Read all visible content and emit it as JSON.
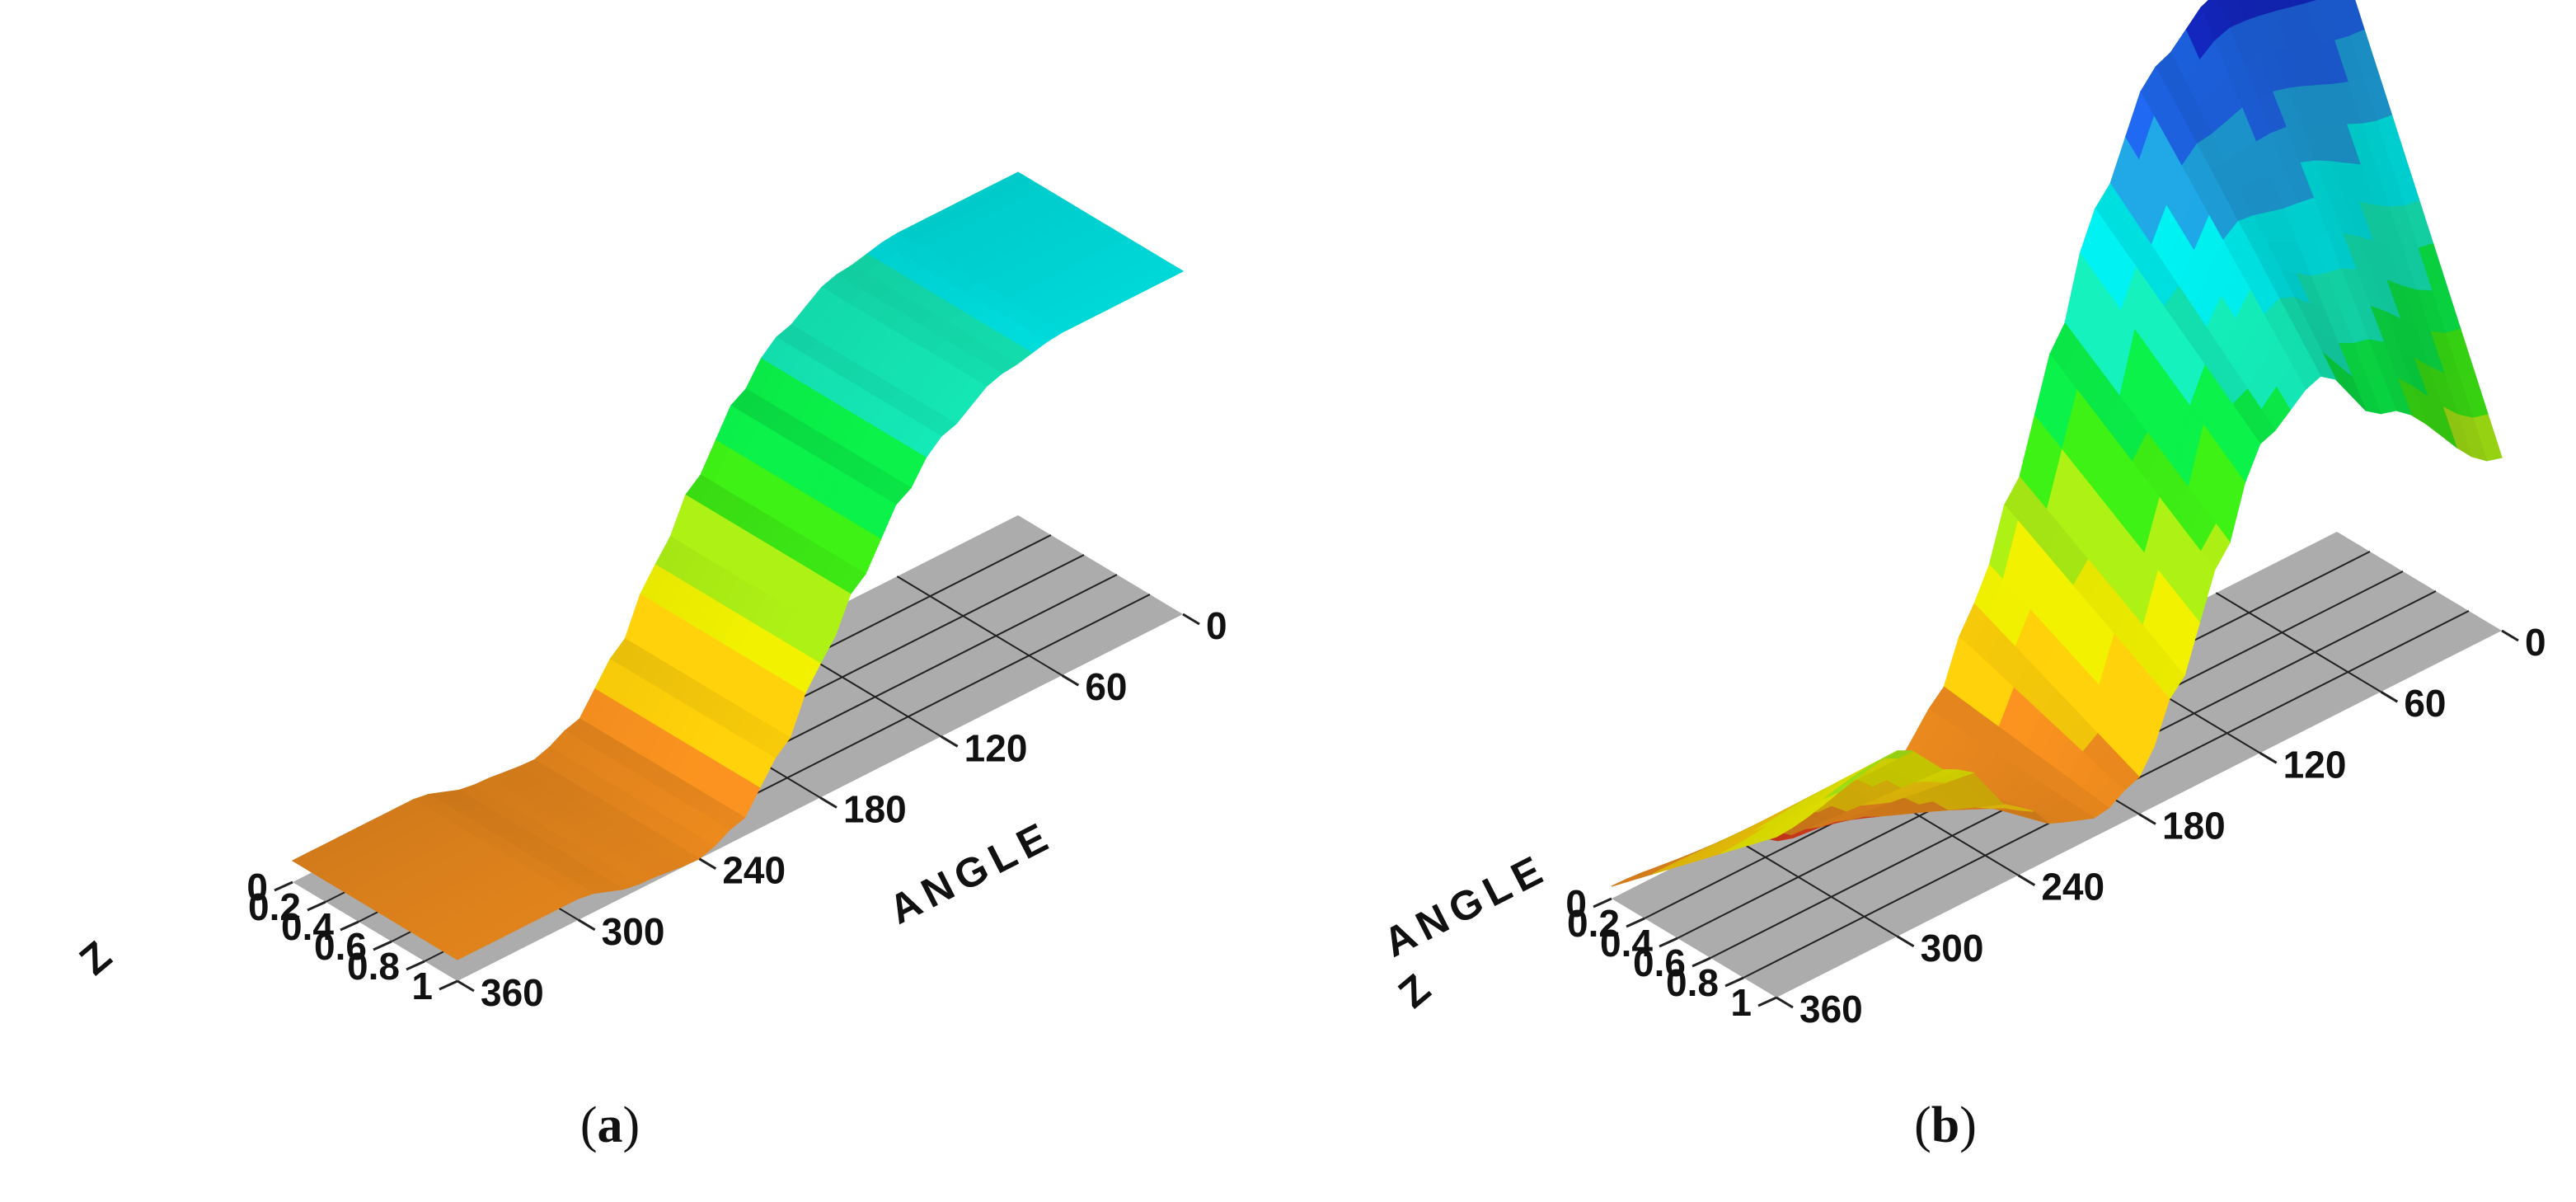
{
  "colors": {
    "floor": "#acacac",
    "grid": "#222222",
    "colormap": [
      "#e8401e",
      "#f08c1e",
      "#f4c80a",
      "#e6e600",
      "#a6e614",
      "#3ce614",
      "#0ae646",
      "#14e6b4",
      "#00e6e6",
      "#1ea0dc",
      "#1e64e6",
      "#1428c8"
    ]
  },
  "chart_data": [
    {
      "type": "surface",
      "caption": {
        "open": "(",
        "letter": "a",
        "close": ")"
      },
      "xlabel": "Z",
      "ylabel": "ANGLE",
      "x_ticks": [
        "0",
        "0.2",
        "0.4",
        "0.6",
        "0.8",
        "1"
      ],
      "y_ticks": [
        "0",
        "60",
        "120",
        "180",
        "240",
        "300",
        "360"
      ],
      "xlim": [
        0,
        1
      ],
      "ylim": [
        0,
        360
      ],
      "angle": [
        0,
        60,
        90,
        120,
        140,
        160,
        180,
        200,
        220,
        240,
        270,
        300,
        360
      ],
      "value_z0": [
        0.64,
        0.64,
        0.62,
        0.56,
        0.48,
        0.37,
        0.25,
        0.12,
        0.03,
        0.0,
        0.01,
        0.04,
        0.04
      ],
      "value_z1": [
        0.64,
        0.64,
        0.62,
        0.56,
        0.48,
        0.37,
        0.25,
        0.12,
        0.03,
        0.0,
        0.01,
        0.04,
        0.04
      ]
    },
    {
      "type": "surface",
      "caption": {
        "open": "(",
        "letter": "b",
        "close": ")"
      },
      "xlabel": "Z",
      "ylabel": "ANGLE",
      "x_ticks": [
        "0",
        "0.2",
        "0.4",
        "0.6",
        "0.8",
        "1"
      ],
      "y_ticks": [
        "0",
        "60",
        "120",
        "180",
        "240",
        "300",
        "360"
      ],
      "xlim": [
        0,
        1
      ],
      "ylim": [
        0,
        360
      ],
      "angle": [
        0,
        60,
        90,
        120,
        140,
        160,
        180,
        200,
        220,
        240,
        270,
        300,
        360
      ],
      "value_z0": [
        0.95,
        0.97,
        0.9,
        0.72,
        0.53,
        0.34,
        0.18,
        0.05,
        -0.02,
        -0.06,
        -0.05,
        0.0,
        0.02
      ],
      "value_z1": [
        0.28,
        0.45,
        0.56,
        0.5,
        0.34,
        0.18,
        0.06,
        0.03,
        0.05,
        0.11,
        0.22,
        0.3,
        0.26
      ]
    }
  ]
}
